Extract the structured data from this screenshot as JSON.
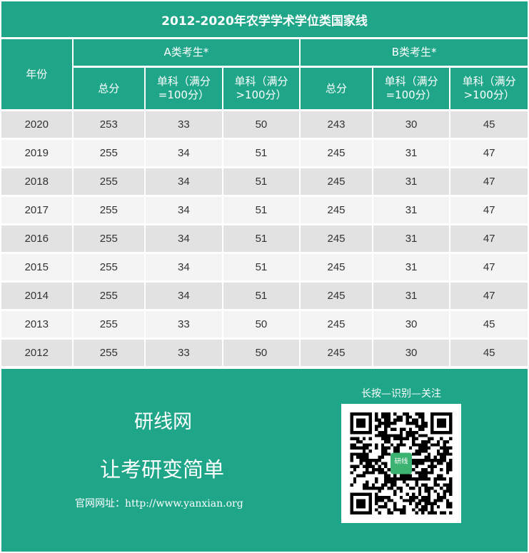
{
  "title": "2012-2020年农学学术学位类国家线",
  "headers": {
    "year": "年份",
    "groupA": "A类考生*",
    "groupB": "B类考生*",
    "total": "总分",
    "single100": "单科（满分=100分）",
    "singleOver100": "单科（满分>100分）"
  },
  "rows": [
    [
      "2020",
      "253",
      "33",
      "50",
      "243",
      "30",
      "45"
    ],
    [
      "2019",
      "255",
      "34",
      "51",
      "245",
      "31",
      "47"
    ],
    [
      "2018",
      "255",
      "34",
      "51",
      "245",
      "31",
      "47"
    ],
    [
      "2017",
      "255",
      "34",
      "51",
      "245",
      "31",
      "47"
    ],
    [
      "2016",
      "255",
      "34",
      "51",
      "245",
      "31",
      "47"
    ],
    [
      "2015",
      "255",
      "34",
      "51",
      "245",
      "31",
      "47"
    ],
    [
      "2014",
      "255",
      "34",
      "51",
      "245",
      "31",
      "47"
    ],
    [
      "2013",
      "255",
      "33",
      "50",
      "245",
      "30",
      "45"
    ],
    [
      "2012",
      "255",
      "33",
      "50",
      "245",
      "30",
      "45"
    ]
  ],
  "footer": {
    "brand": "研线网",
    "slogan": "让考研变简单",
    "site": "官网网址：http://www.yanxian.org",
    "qr_label": "长按—识别—关注",
    "qr_logo": "研线"
  },
  "colors": {
    "accent": "#1fa688",
    "row_dark": "#e2e2e2",
    "row_light": "#f4f4f4"
  }
}
